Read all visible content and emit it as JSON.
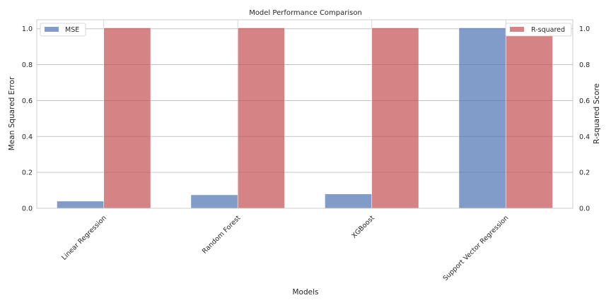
{
  "chart_data": {
    "type": "bar",
    "title": "Model Performance Comparison",
    "xlabel": "Models",
    "ylabel_left": "Mean Squared Error",
    "ylabel_right": "R-squared Score",
    "categories": [
      "Linear Regression",
      "Random Forest",
      "XGBoost",
      "Support Vector Regression"
    ],
    "series": [
      {
        "name": "MSE",
        "axis": "left",
        "color": "#4c72b0",
        "values": [
          0.04,
          0.075,
          0.08,
          1.005
        ]
      },
      {
        "name": "R-squared",
        "axis": "right",
        "color": "#c44e52",
        "values": [
          1.005,
          1.005,
          1.005,
          1.005
        ]
      }
    ],
    "ylim_left": [
      0,
      1.05
    ],
    "ylim_right": [
      0,
      1.05
    ],
    "yticks_left": [
      "0.0",
      "0.2",
      "0.4",
      "0.6",
      "0.8",
      "1.0"
    ],
    "yticks_right": [
      "0.0",
      "0.2",
      "0.4",
      "0.6",
      "0.8",
      "1.0"
    ],
    "grid": true,
    "legend_left": "top-left",
    "legend_right": "top-right"
  }
}
